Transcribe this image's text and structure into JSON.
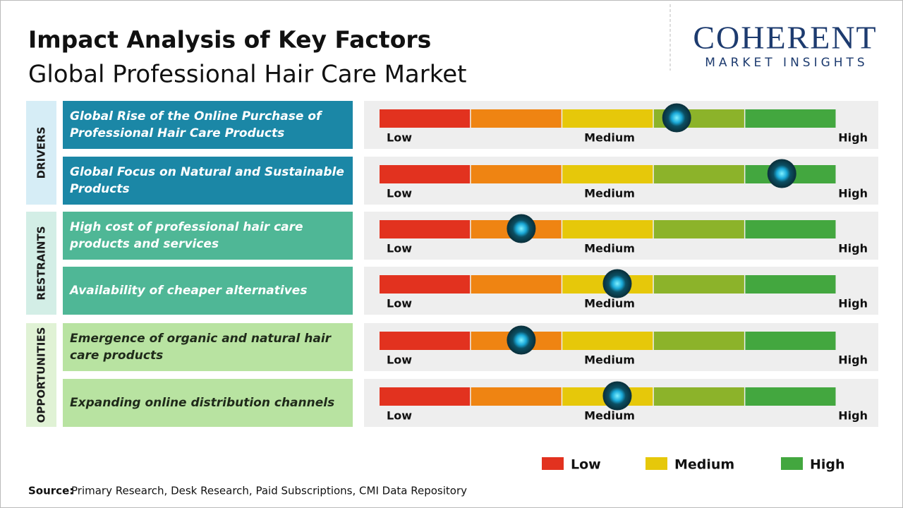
{
  "header": {
    "title": "Impact Analysis of Key Factors",
    "subtitle": "Global Professional Hair Care Market"
  },
  "logo": {
    "name": "COHERENT",
    "tagline": "MARKET INSIGHTS"
  },
  "scale": {
    "labels": [
      "Low",
      "Medium",
      "High"
    ],
    "xlim": [
      0,
      5
    ],
    "segment_colors": [
      "#e2321f",
      "#ef8412",
      "#e6c80a",
      "#8cb32a",
      "#43a73f"
    ]
  },
  "groups": [
    {
      "name": "DRIVERS",
      "tab_color": "#d6edf6",
      "box_color": "#1b87a6",
      "text_color": "#ffffff",
      "items": [
        {
          "label": "Global Rise of the Online Purchase of Professional Hair Care Products",
          "impact": 3.25
        },
        {
          "label": "Global Focus on Natural and Sustainable Products",
          "impact": 4.4
        }
      ]
    },
    {
      "name": "RESTRAINTS",
      "tab_color": "#d3eee6",
      "box_color": "#4fb796",
      "text_color": "#ffffff",
      "items": [
        {
          "label": "High cost of professional hair care products and services",
          "impact": 1.55
        },
        {
          "label": "Availability of cheaper alternatives",
          "impact": 2.6
        }
      ]
    },
    {
      "name": "OPPORTUNITIES",
      "tab_color": "#e0f2d5",
      "box_color": "#b8e3a1",
      "text_color": "#1f2a1a",
      "items": [
        {
          "label": "Emergence of organic and natural hair care products",
          "impact": 1.55
        },
        {
          "label": "Expanding online distribution channels",
          "impact": 2.6
        }
      ]
    }
  ],
  "legend": [
    {
      "label": "Low",
      "color": "#e2321f"
    },
    {
      "label": "Medium",
      "color": "#e6c80a"
    },
    {
      "label": "High",
      "color": "#43a73f"
    }
  ],
  "source": {
    "label": "Source:",
    "text": "Primary Research, Desk Research, Paid Subscriptions, CMI Data Repository"
  }
}
